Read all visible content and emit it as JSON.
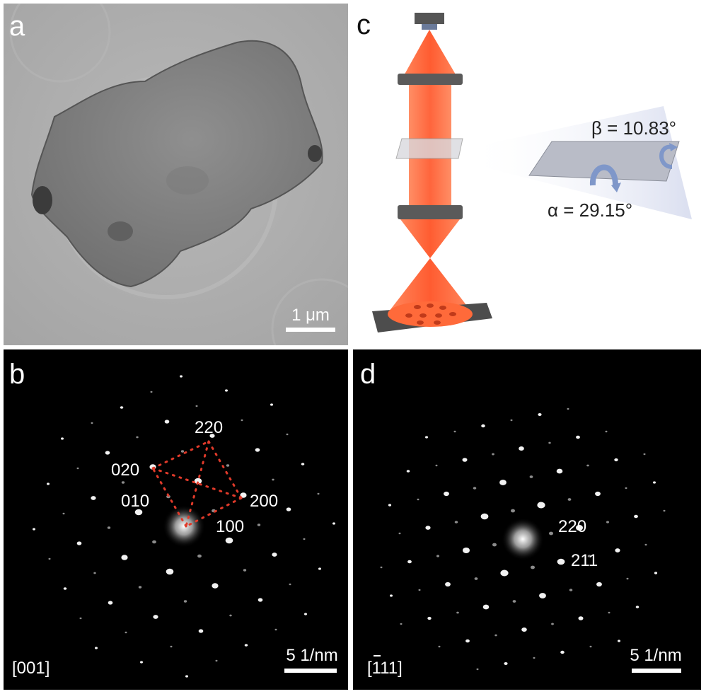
{
  "panels": {
    "a": {
      "label": "a",
      "scale_bar": "1 μm"
    },
    "b": {
      "label": "b",
      "zone_axis": "[001]",
      "scale_bar": "5 1/nm",
      "spot_labels": [
        "220",
        "020",
        "010",
        "200",
        "100"
      ],
      "overlay_color": "#e03a2a"
    },
    "c": {
      "label": "c",
      "beta": "β = 10.83°",
      "alpha": "α = 29.15°",
      "beam_color": "#ff5a2a"
    },
    "d": {
      "label": "d",
      "zone_axis": "[111]",
      "zone_axis_bar_over": "1",
      "scale_bar": "5 1/nm",
      "spot_labels": [
        "220",
        "211"
      ]
    }
  }
}
